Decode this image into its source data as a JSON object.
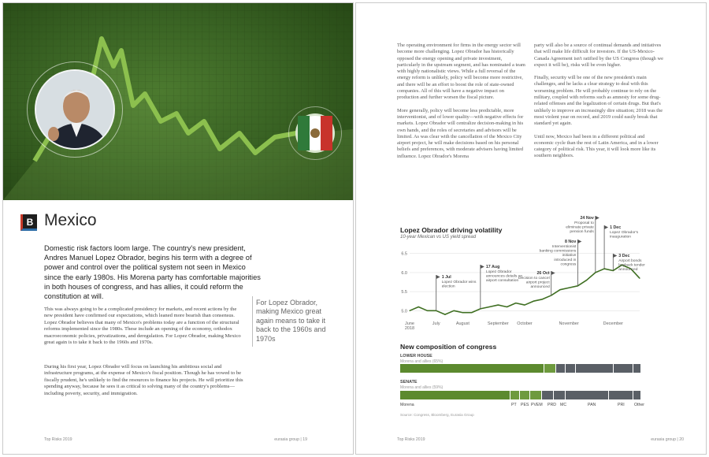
{
  "left_page": {
    "section_badge": "B",
    "country": "Mexico",
    "lead": "Domestic risk factors loom large. The country's new president, Andres Manuel Lopez Obrador, begins his term with a degree of power and control over the political system not seen in Mexico since the early 1980s. His Morena party has comfortable majorities in both houses of congress, and has allies, it could reform the constitution at will.",
    "body_1": "This was always going to be a complicated presidency for markets, and recent actions by the new president have confirmed our expectations, which leaned more bearish than consensus. Lopez Obrador believes that many of Mexico's problems today are a function of the structural reforms implemented since the 1980s. These include an opening of the economy, orthodox macroeconomic policies, privatizations, and deregulation. For Lopez Obrador, making Mexico great again is to take it back to the 1960s and 1970s.",
    "body_2": "During his first year, Lopez Obrador will focus on launching his ambitious social and infrastructure programs, at the expense of Mexico's fiscal position. Though he has vowed to be fiscally prudent, he's unlikely to find the resources to finance his projects. He will prioritize this spending anyway, because he sees it as critical to solving many of the country's problems—including poverty, security, and immigration.",
    "pull_quote": "For Lopez Obrador, making Mexico great again means to take it back to the 1960s and 1970s",
    "footer_left": "Top Risks 2019",
    "footer_right": "eurasia group  |  19"
  },
  "right_page": {
    "col1_p1": "The operating environment for firms in the energy sector will become more challenging. Lopez Obrador has historically opposed the energy opening and private investment, particularly in the upstream segment, and has nominated a team with highly nationalistic views. While a full reversal of the energy reform is unlikely, policy will become more restrictive, and there will be an effort to boost the role of state-owned companies. All of this will have a negative impact on production and further worsen the fiscal picture.",
    "col1_p2": "More generally, policy will become less predictable, more interventionist, and of lower quality—with negative effects for markets. Lopez Obrador will centralize decision-making in his own hands, and the roles of secretaries and advisors will be limited. As was clear with the cancellation of the Mexico City airport project, he will make decisions based on his personal beliefs and preferences, with moderate advisers having limited influence. Lopez Obrador's Morena",
    "col2_p1": "party will also be a source of continual demands and initiatives that will make life difficult for investors. If the US-Mexico-Canada Agreement isn't ratified by the US Congress (though we expect it will be), risks will be even higher.",
    "col2_p2": "Finally, security will be one of the new president's main challenges, and he lacks a clear strategy to deal with this worsening problem. He will probably continue to rely on the military, coupled with reforms such as amnesty for some drug-related offenses and the legalization of certain drugs. But that's unlikely to improve an increasingly dire situation; 2018 was the most violent year on record, and 2019 could easily break that standard yet again.",
    "col2_p3": "Until now, Mexico had been in a different political and economic cycle than the rest of Latin America, and in a lower category of political risk. This year, it will look more like its southern neighbors.",
    "footer_left": "Top Risks 2019",
    "footer_right": "eurasia group  |  20",
    "congress": {
      "title": "New composition of congress",
      "lower_label": "LOWER HOUSE",
      "lower_sub": "Morena and allies (65%)",
      "senate_label": "SENATE",
      "senate_sub": "Morena and allies (59%)",
      "parties": [
        "Morena",
        "PT",
        "PES",
        "PVEM",
        "PRD",
        "MC",
        "PAN",
        "PRI",
        "Other"
      ],
      "source": "Source: Congress, Bloomberg, Eurasia Group"
    }
  },
  "chart_data": {
    "type": "line",
    "title": "Lopez Obrador driving volatility",
    "subtitle": "10-year Mexican vs US yield spread",
    "xlabel": "",
    "ylabel": "",
    "x_ticks": [
      "June 2018",
      "July",
      "August",
      "September",
      "October",
      "November",
      "December"
    ],
    "y_ticks": [
      5.0,
      5.5,
      6.0,
      6.5
    ],
    "ylim": [
      4.8,
      6.7
    ],
    "x": [
      "Jun 1",
      "Jun 10",
      "Jun 20",
      "Jul 1",
      "Jul 10",
      "Jul 20",
      "Aug 1",
      "Aug 10",
      "Aug 17",
      "Aug 25",
      "Sep 1",
      "Sep 10",
      "Sep 20",
      "Oct 1",
      "Oct 10",
      "Oct 20",
      "Oct 26",
      "Nov 1",
      "Nov 5",
      "Nov 8",
      "Nov 15",
      "Nov 24",
      "Dec 1",
      "Dec 3",
      "Dec 10",
      "Dec 20",
      "Dec 31"
    ],
    "values": [
      5.0,
      5.1,
      5.0,
      5.0,
      4.9,
      5.0,
      4.95,
      4.95,
      5.05,
      5.1,
      5.15,
      5.1,
      5.2,
      5.15,
      5.25,
      5.3,
      5.4,
      5.55,
      5.6,
      5.65,
      5.8,
      6.0,
      6.1,
      6.05,
      6.2,
      6.1,
      5.85
    ],
    "color": "#3f6f22",
    "annotations": [
      {
        "label": "1 Jul",
        "text": "Lopez Obrador wins election"
      },
      {
        "label": "17 Aug",
        "text": "Lopez Obrador announces details on airport consultation"
      },
      {
        "label": "26 Oct",
        "text": "Decision to cancel airport project announced"
      },
      {
        "label": "8 Nov",
        "text": "Interventionist banking commissions initiative introduced in congress"
      },
      {
        "label": "24 Nov",
        "text": "Proposal to eliminate private pension funds"
      },
      {
        "label": "1 Dec",
        "text": "Lopez Obrador's inauguration"
      },
      {
        "label": "3 Dec",
        "text": "Airport bonds buyback tender announced"
      }
    ],
    "congress_colors": {
      "morena": "#5c8a2e",
      "allies": "#6e9a3e",
      "opposition": "#5a5f66"
    }
  }
}
